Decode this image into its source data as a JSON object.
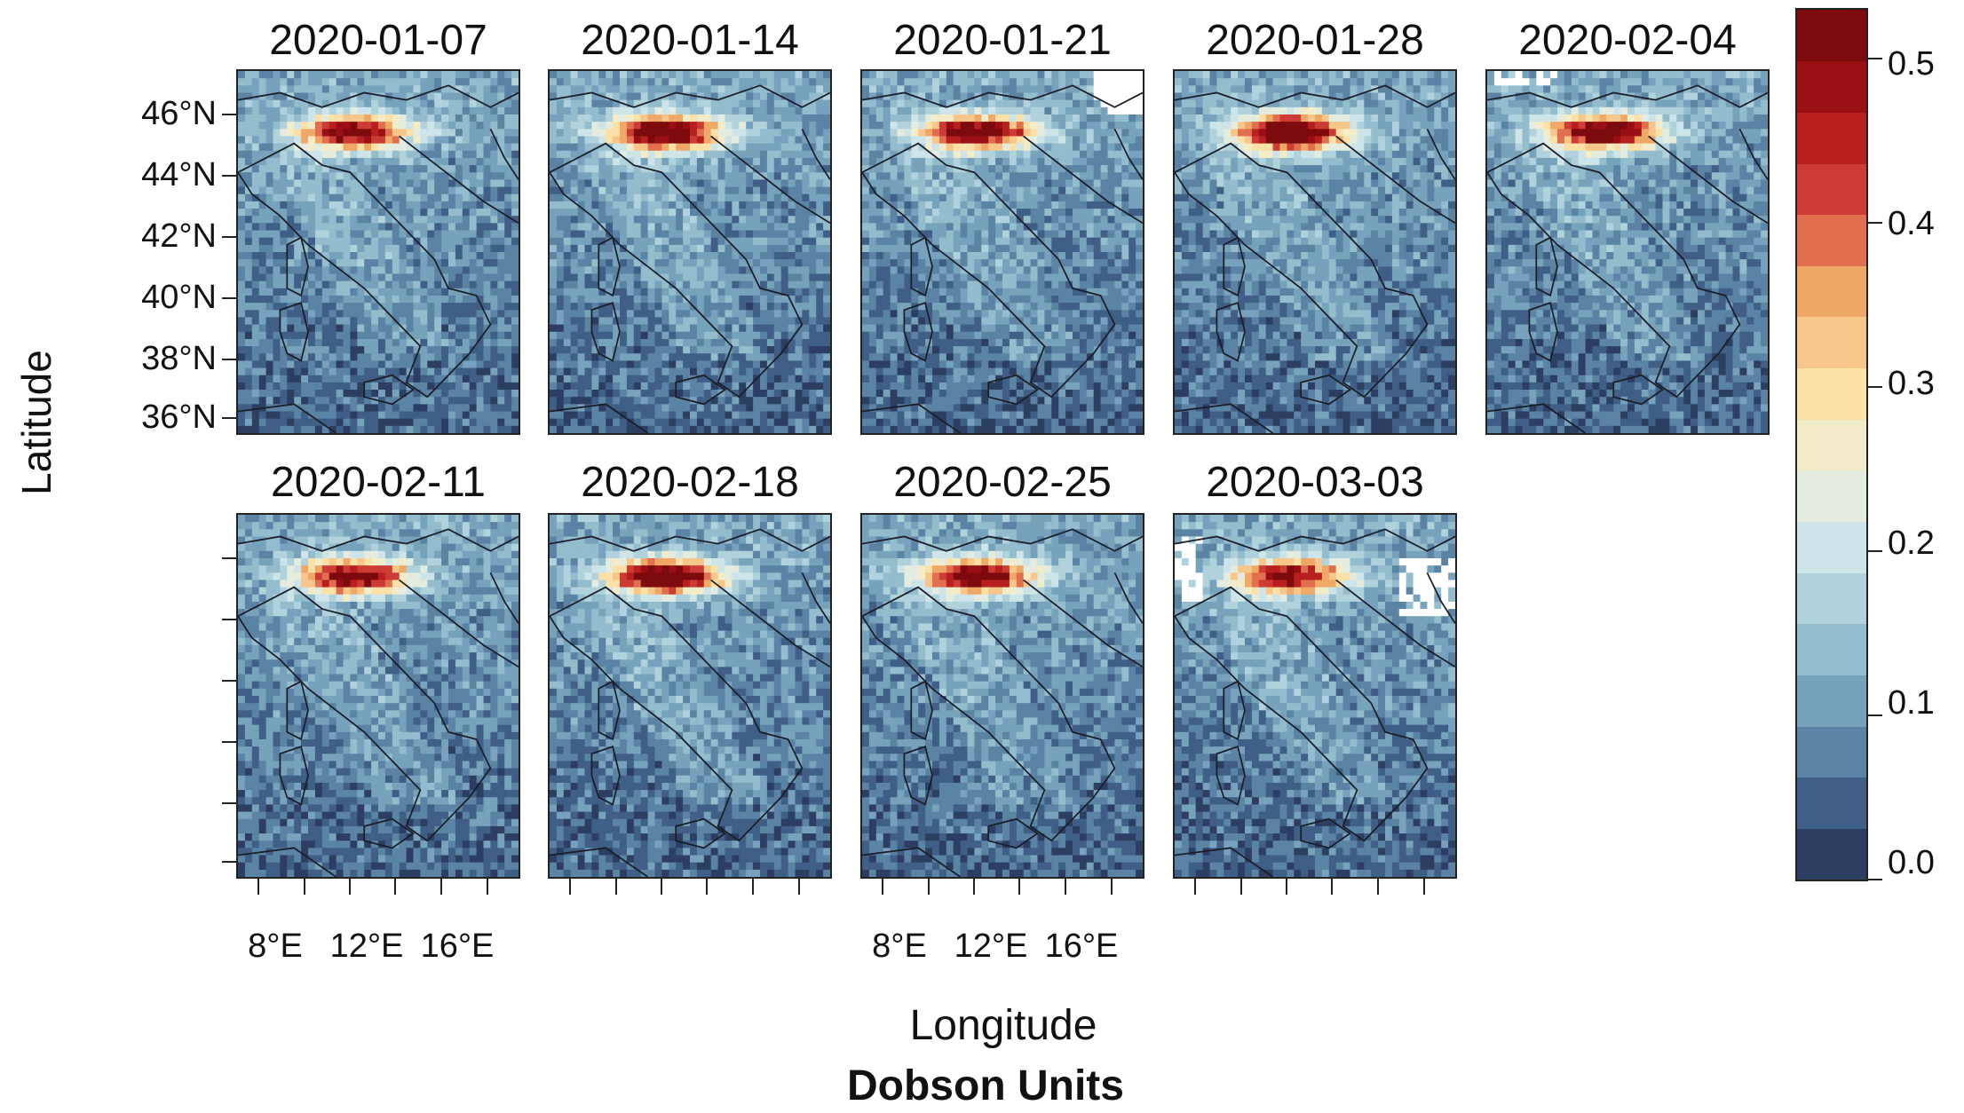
{
  "figure": {
    "ylabel": "Latitude",
    "xlabel": "Longitude",
    "units_label": "Dobson Units"
  },
  "latitude_ticks": [
    "46°N",
    "44°N",
    "42°N",
    "40°N",
    "38°N",
    "36°N"
  ],
  "longitude_ticks": [
    "8°E",
    "12°E",
    "16°E"
  ],
  "colorbar": {
    "min": 0.0,
    "max": 0.53,
    "tick_labels": [
      "0.5",
      "0.4",
      "0.3",
      "0.2",
      "0.1",
      "0.0"
    ],
    "tick_values": [
      0.5,
      0.4,
      0.3,
      0.2,
      0.1,
      0.0
    ],
    "colors": [
      "#2d3e63",
      "#3f5f86",
      "#5a83a4",
      "#77a2bb",
      "#93bccc",
      "#b0d2dc",
      "#cde4e8",
      "#e3ecdf",
      "#f3ecc9",
      "#fbe0a8",
      "#f7c68a",
      "#f0a867",
      "#e06e4f",
      "#cd3c34",
      "#b8201f",
      "#9a0f14",
      "#7d0a0d"
    ]
  },
  "panels": [
    {
      "date": "2020-01-07",
      "hotspot_peak": 0.45,
      "missing_area": "none"
    },
    {
      "date": "2020-01-14",
      "hotspot_peak": 0.5,
      "missing_area": "none"
    },
    {
      "date": "2020-01-21",
      "hotspot_peak": 0.47,
      "missing_area": "northeast corner"
    },
    {
      "date": "2020-01-28",
      "hotspot_peak": 0.53,
      "missing_area": "none"
    },
    {
      "date": "2020-02-04",
      "hotspot_peak": 0.48,
      "missing_area": "north edge"
    },
    {
      "date": "2020-02-11",
      "hotspot_peak": 0.45,
      "missing_area": "none"
    },
    {
      "date": "2020-02-18",
      "hotspot_peak": 0.5,
      "missing_area": "none"
    },
    {
      "date": "2020-02-25",
      "hotspot_peak": 0.47,
      "missing_area": "none"
    },
    {
      "date": "2020-03-03",
      "hotspot_peak": 0.42,
      "missing_area": "northwest and east"
    }
  ]
}
